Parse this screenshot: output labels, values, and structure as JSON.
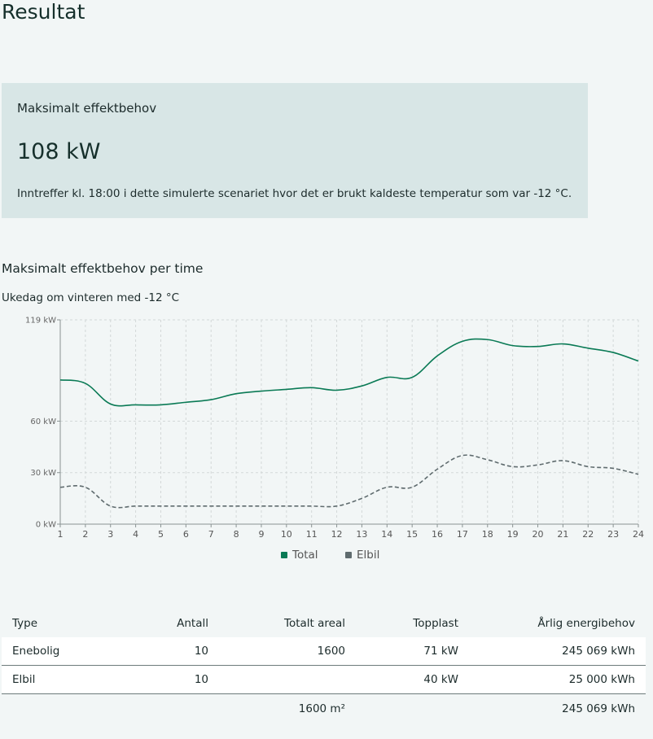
{
  "page": {
    "title": "Resultat"
  },
  "summary_card": {
    "label": "Maksimalt effektbehov",
    "value": "108 kW",
    "note": "Inntreffer kl. 18:00 i dette simulerte scenariet hvor det er brukt kaldeste temperatur som var -12 °C."
  },
  "chart_section": {
    "title": "Maksimalt effektbehov per time",
    "subtitle": "Ukedag om vinteren med -12 °C"
  },
  "colors": {
    "total": "#0a7a55",
    "elbil": "#5f6b6e",
    "grid": "#d3d8d8",
    "axis": "#8a9393"
  },
  "chart_data": {
    "type": "line",
    "title": "Maksimalt effektbehov per time",
    "subtitle": "Ukedag om vinteren med -12 °C",
    "xlabel": "",
    "ylabel": "",
    "x": [
      1,
      2,
      3,
      4,
      5,
      6,
      7,
      8,
      9,
      10,
      11,
      12,
      13,
      14,
      15,
      16,
      17,
      18,
      19,
      20,
      21,
      22,
      23,
      24
    ],
    "ylim": [
      0,
      119
    ],
    "y_ticks": [
      {
        "value": 0,
        "label": "0 kW"
      },
      {
        "value": 30,
        "label": "30 kW"
      },
      {
        "value": 60,
        "label": "60 kW"
      },
      {
        "value": 119,
        "label": "119 kW"
      }
    ],
    "grid": true,
    "legend": "bottom-center",
    "series": [
      {
        "name": "Total",
        "style": "solid",
        "values": [
          84,
          82,
          70,
          69.5,
          69.5,
          71,
          72.5,
          76,
          77.5,
          78.5,
          79.5,
          78,
          80.5,
          85.5,
          85.5,
          98,
          106.5,
          107.5,
          104,
          103.5,
          105,
          102.5,
          100,
          95
        ]
      },
      {
        "name": "Elbil",
        "style": "dashed",
        "values": [
          21.5,
          21.5,
          10.5,
          10.5,
          10.5,
          10.5,
          10.5,
          10.5,
          10.5,
          10.5,
          10.5,
          10.5,
          15,
          21.5,
          21.5,
          32,
          40,
          37.5,
          33.5,
          34.5,
          37,
          33.5,
          32.5,
          29
        ]
      }
    ]
  },
  "table": {
    "headers": [
      "Type",
      "Antall",
      "Totalt areal",
      "Topplast",
      "Årlig energibehov"
    ],
    "rows": [
      [
        "Enebolig",
        "10",
        "1600",
        "71 kW",
        "245 069 kWh"
      ],
      [
        "Elbil",
        "10",
        "",
        "40 kW",
        "25 000 kWh"
      ]
    ],
    "footer": [
      "",
      "",
      "1600 m²",
      "",
      "245 069 kWh"
    ]
  }
}
